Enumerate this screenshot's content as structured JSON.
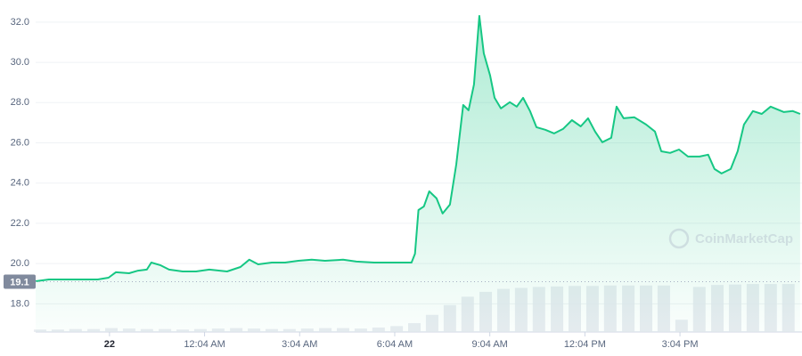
{
  "chart_data": {
    "type": "line",
    "watermark": "CoinMarketCap",
    "color": "#16c784",
    "baseline": 19.1,
    "x": [
      -2.33,
      -1.91,
      -1.21,
      -0.37,
      -0.03,
      0.2,
      0.62,
      0.9,
      1.18,
      1.32,
      1.6,
      1.88,
      2.31,
      2.73,
      3.15,
      3.71,
      4.13,
      4.41,
      4.69,
      5.12,
      5.54,
      5.96,
      6.38,
      6.8,
      7.37,
      7.79,
      8.35,
      8.91,
      9.53,
      9.64,
      9.75,
      9.92,
      10.09,
      10.32,
      10.51,
      10.74,
      10.94,
      11.16,
      11.33,
      11.5,
      11.67,
      11.81,
      12.01,
      12.15,
      12.35,
      12.63,
      12.85,
      13.05,
      13.27,
      13.47,
      13.75,
      14.03,
      14.31,
      14.59,
      14.87,
      15.1,
      15.32,
      15.55,
      15.83,
      16.0,
      16.22,
      16.56,
      16.93,
      17.21,
      17.41,
      17.69,
      17.97,
      18.25,
      18.62,
      18.89,
      19.09,
      19.31,
      19.6,
      19.82,
      20.02,
      20.3,
      20.58,
      20.86,
      21.28,
      21.56,
      21.79
    ],
    "values": [
      19.12,
      19.21,
      19.21,
      19.21,
      19.3,
      19.57,
      19.52,
      19.65,
      19.7,
      20.05,
      19.92,
      19.7,
      19.61,
      19.61,
      19.7,
      19.61,
      19.83,
      20.19,
      19.96,
      20.05,
      20.05,
      20.14,
      20.19,
      20.14,
      20.19,
      20.1,
      20.05,
      20.05,
      20.05,
      20.49,
      22.66,
      22.84,
      23.59,
      23.24,
      22.49,
      22.93,
      24.92,
      27.88,
      27.62,
      28.9,
      32.31,
      30.45,
      29.35,
      28.24,
      27.71,
      28.02,
      27.8,
      28.24,
      27.58,
      26.78,
      26.65,
      26.47,
      26.69,
      27.13,
      26.82,
      27.22,
      26.56,
      26.03,
      26.25,
      27.8,
      27.22,
      27.27,
      26.91,
      26.56,
      25.58,
      25.5,
      25.67,
      25.32,
      25.32,
      25.41,
      24.7,
      24.48,
      24.7,
      25.58,
      26.91,
      27.58,
      27.44,
      27.8,
      27.53,
      27.58,
      27.44
    ],
    "volume": {
      "x": [
        -2.19,
        -1.63,
        -1.07,
        -0.5,
        0.06,
        0.62,
        1.18,
        1.75,
        2.31,
        2.87,
        3.43,
        4.0,
        4.56,
        5.12,
        5.68,
        6.24,
        6.81,
        7.37,
        7.93,
        8.49,
        9.06,
        9.62,
        10.18,
        10.74,
        11.3,
        11.87,
        12.43,
        12.99,
        13.55,
        14.12,
        14.68,
        15.24,
        15.8,
        16.37,
        16.93,
        17.49,
        18.05,
        18.61,
        19.18,
        19.74,
        20.3,
        20.86,
        21.42
      ],
      "values": [
        5,
        5,
        6,
        6,
        8,
        7,
        6,
        6,
        5,
        6,
        7,
        8,
        7,
        6,
        6,
        7,
        8,
        8,
        7,
        9,
        12,
        18,
        35,
        55,
        72,
        82,
        88,
        90,
        92,
        93,
        94,
        94,
        95,
        95,
        95,
        95,
        25,
        92,
        96,
        97,
        98,
        98,
        98
      ],
      "lim": [
        0,
        100
      ]
    },
    "xlim": [
      -2.33,
      21.85
    ],
    "ylim": [
      16.6,
      33.1
    ],
    "xticks": [
      {
        "value": 0,
        "label": "22"
      },
      {
        "value": 3,
        "label": "12:04 AM"
      },
      {
        "value": 6,
        "label": "3:04 AM"
      },
      {
        "value": 9,
        "label": "6:04 AM"
      },
      {
        "value": 12,
        "label": "9:04 AM"
      },
      {
        "value": 15,
        "label": "12:04 PM"
      },
      {
        "value": 18,
        "label": "3:04 PM"
      }
    ],
    "yticks": [
      {
        "value": 18,
        "label": "18.0"
      },
      {
        "value": 20,
        "label": "20.0"
      },
      {
        "value": 22,
        "label": "22.0"
      },
      {
        "value": 24,
        "label": "24.0"
      },
      {
        "value": 26,
        "label": "26.0"
      },
      {
        "value": 28,
        "label": "28.0"
      },
      {
        "value": 30,
        "label": "30.0"
      },
      {
        "value": 32,
        "label": "32.0"
      }
    ],
    "grid": true
  }
}
